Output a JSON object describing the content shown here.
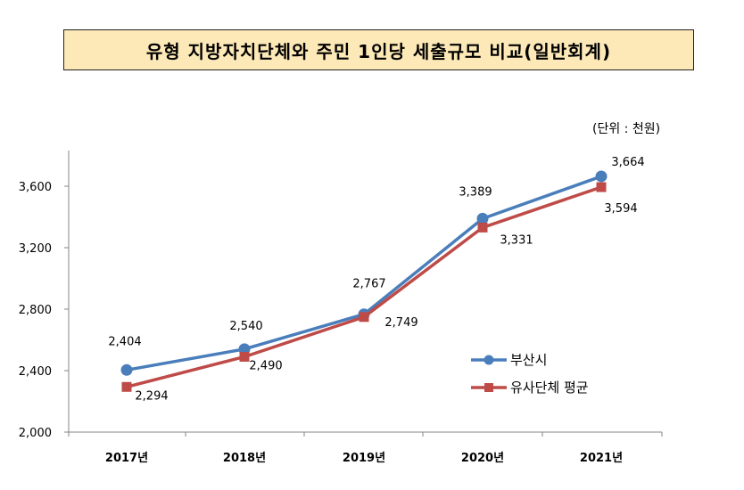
{
  "title": "유형 지방자치단체와 주민 1인당 세출규모 비교(일반회계)",
  "unit_note": "(단위 : 천원)",
  "chart_data": {
    "type": "line",
    "x": [
      "2017년",
      "2018년",
      "2019년",
      "2020년",
      "2021년"
    ],
    "ylim": [
      2000,
      3800
    ],
    "yticks": [
      2000,
      2400,
      2800,
      3200,
      3600
    ],
    "ytick_labels": [
      "2,000",
      "2,400",
      "2,800",
      "3,200",
      "3,600"
    ],
    "grid": false,
    "legend_position": "right",
    "series": [
      {
        "name": "부산시",
        "values": [
          2404,
          2540,
          2767,
          3389,
          3664
        ],
        "labels": [
          "2,404",
          "2,540",
          "2,767",
          "3,389",
          "3,664"
        ],
        "color": "#4a7ebb",
        "marker": "circle"
      },
      {
        "name": "유사단체 평균",
        "values": [
          2294,
          2490,
          2749,
          3331,
          3594
        ],
        "labels": [
          "2,294",
          "2,490",
          "2,749",
          "3,331",
          "3,594"
        ],
        "color": "#be4b48",
        "marker": "square"
      }
    ]
  }
}
